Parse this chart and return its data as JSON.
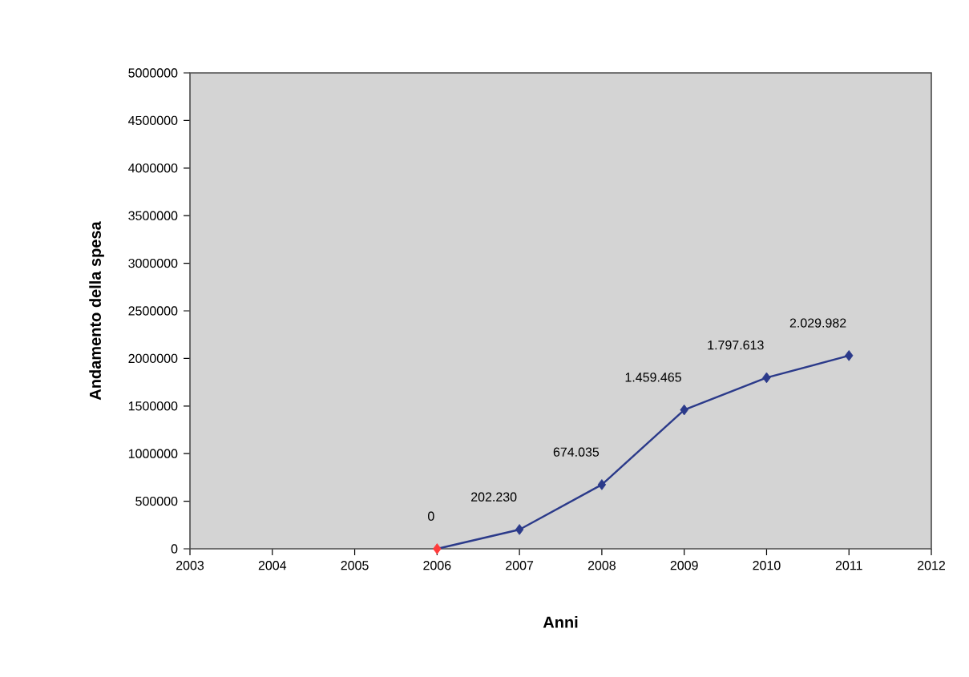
{
  "chart_data": {
    "type": "line",
    "xlabel": "Anni",
    "ylabel": "Andamento della spesa",
    "x": [
      2006,
      2007,
      2008,
      2009,
      2010,
      2011
    ],
    "series": [
      {
        "color": "#2b3a8a",
        "colors": [
          "#ff3b3b",
          "#2b3a8a",
          "#2b3a8a",
          "#2b3a8a",
          "#2b3a8a",
          "#2b3a8a"
        ],
        "values": [
          0,
          202230,
          674035,
          1459465,
          1797613,
          2029982
        ],
        "value_labels": [
          "0",
          "202.230",
          "674.035",
          "1.459.465",
          "1.797.613",
          "2.029.982"
        ]
      }
    ],
    "marker": "diamond",
    "line_style": "solid",
    "xlim": [
      2003,
      2012
    ],
    "xticks": [
      2003,
      2004,
      2005,
      2006,
      2007,
      2008,
      2009,
      2010,
      2011,
      2012
    ],
    "ylim": [
      0,
      5000000
    ],
    "yticks": [
      0,
      500000,
      1000000,
      1500000,
      2000000,
      2500000,
      3000000,
      3500000,
      4000000,
      4500000,
      5000000
    ]
  }
}
